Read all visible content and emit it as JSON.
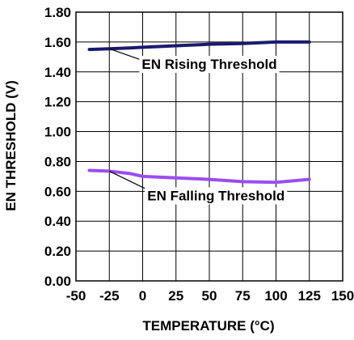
{
  "chart_data": {
    "type": "line",
    "title": "",
    "xlabel": "TEMPERATURE (°C)",
    "ylabel": "EN THRESHOLD (V)",
    "xlim": [
      -50,
      150
    ],
    "ylim": [
      0.0,
      1.8
    ],
    "xticks": [
      -50,
      -25,
      0,
      25,
      50,
      75,
      100,
      125,
      150
    ],
    "xtick_labels": [
      "-50",
      "-25",
      "0",
      "25",
      "50",
      "75",
      "100",
      "125",
      "150"
    ],
    "yticks": [
      0.0,
      0.2,
      0.4,
      0.6,
      0.8,
      1.0,
      1.2,
      1.4,
      1.6,
      1.8
    ],
    "ytick_labels": [
      "0.00",
      "0.20",
      "0.40",
      "0.60",
      "0.80",
      "1.00",
      "1.20",
      "1.40",
      "1.60",
      "1.80"
    ],
    "grid": true,
    "legend": "none",
    "series": [
      {
        "name": "EN Rising Threshold",
        "color": "#1a1a6e",
        "x": [
          -40,
          -25,
          -10,
          0,
          25,
          50,
          75,
          100,
          125
        ],
        "y": [
          1.55,
          1.555,
          1.56,
          1.565,
          1.575,
          1.585,
          1.59,
          1.6,
          1.6
        ]
      },
      {
        "name": "EN Falling Threshold",
        "color": "#9b4df2",
        "x": [
          -40,
          -25,
          -10,
          0,
          25,
          50,
          75,
          100,
          125
        ],
        "y": [
          0.74,
          0.735,
          0.72,
          0.7,
          0.69,
          0.68,
          0.665,
          0.66,
          0.68
        ]
      }
    ],
    "annotations": [
      {
        "text": "EN Rising Threshold",
        "series": 0,
        "point_x": -25,
        "label_x": 50,
        "label_y": 1.42
      },
      {
        "text": "EN Falling Threshold",
        "series": 1,
        "point_x": -25,
        "label_x": 55,
        "label_y": 0.54
      }
    ]
  }
}
